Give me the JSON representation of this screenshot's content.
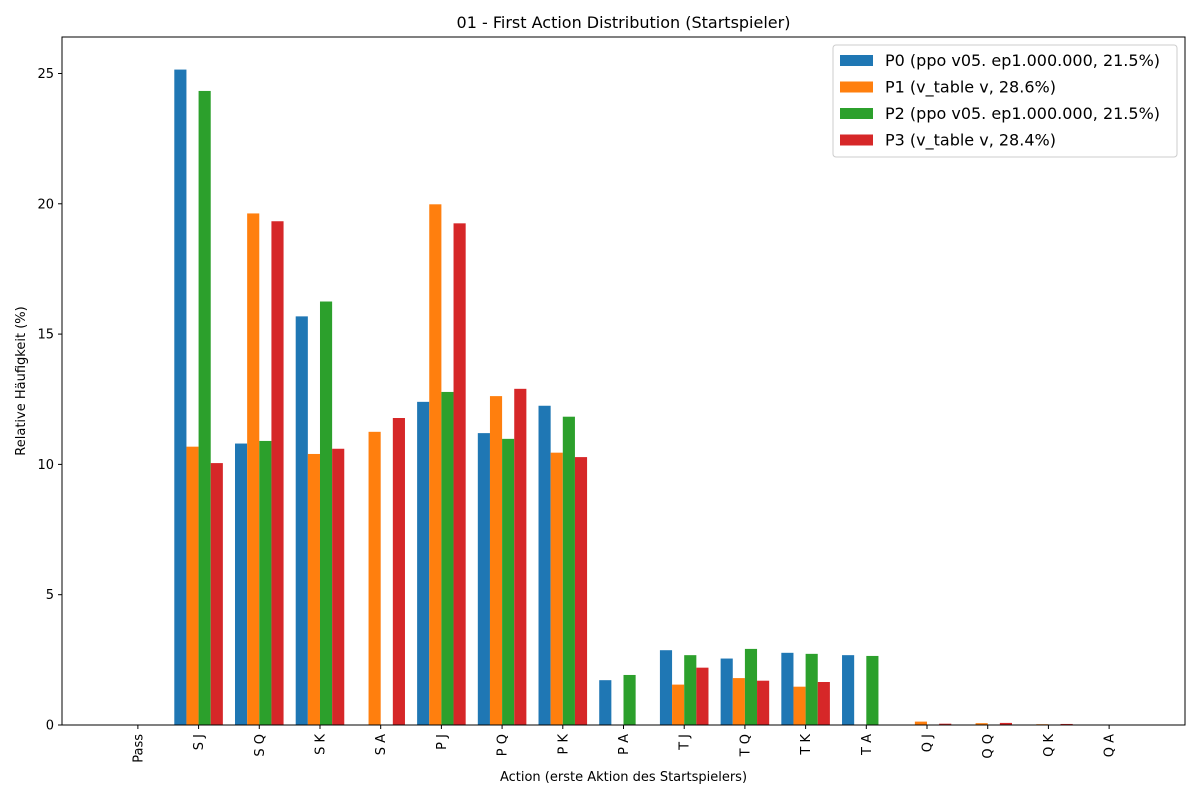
{
  "chart_data": {
    "type": "bar",
    "title": "01 - First Action Distribution (Startspieler)",
    "xlabel": "Action (erste Aktion des Startspielers)",
    "ylabel": "Relative Häufigkeit (%)",
    "ylim": [
      0,
      26.4
    ],
    "yticks": [
      0,
      5,
      10,
      15,
      20,
      25
    ],
    "grid": false,
    "legend_position": "top-right",
    "categories": [
      "Pass",
      "S J",
      "S Q",
      "S K",
      "S A",
      "P J",
      "P Q",
      "P K",
      "P A",
      "T J",
      "T Q",
      "T K",
      "T A",
      "Q J",
      "Q Q",
      "Q K",
      "Q A"
    ],
    "series": [
      {
        "name": "P0 (ppo v05. ep1.000.000, 21.5%)",
        "color": "#1f77b4",
        "values": [
          0,
          25.15,
          10.8,
          15.68,
          0,
          12.4,
          11.2,
          12.25,
          1.72,
          2.87,
          2.55,
          2.77,
          2.68,
          0,
          0,
          0,
          0
        ]
      },
      {
        "name": "P1 (v_table v, 28.6%)",
        "color": "#ff7f0e",
        "values": [
          0,
          10.68,
          19.63,
          10.4,
          11.25,
          19.98,
          12.62,
          10.45,
          0,
          1.55,
          1.8,
          1.47,
          0,
          0.13,
          0.07,
          0.03,
          0
        ]
      },
      {
        "name": "P2 (ppo v05. ep1.000.000, 21.5%)",
        "color": "#2ca02c",
        "values": [
          0,
          24.33,
          10.9,
          16.25,
          0,
          12.78,
          10.98,
          11.83,
          1.92,
          2.68,
          2.92,
          2.73,
          2.65,
          0,
          0,
          0,
          0
        ]
      },
      {
        "name": "P3 (v_table v, 28.4%)",
        "color": "#d62728",
        "values": [
          0,
          10.05,
          19.33,
          10.6,
          11.78,
          19.25,
          12.9,
          10.28,
          0,
          2.2,
          1.7,
          1.65,
          0,
          0.05,
          0.08,
          0.04,
          0
        ]
      }
    ]
  }
}
